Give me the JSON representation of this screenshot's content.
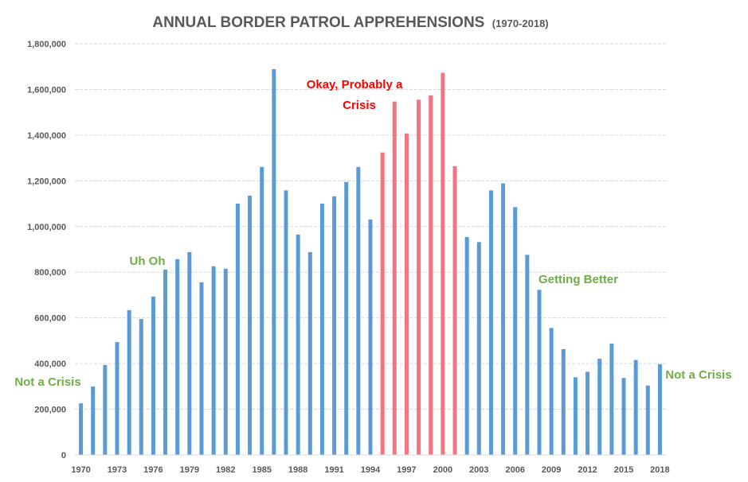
{
  "chart_data": {
    "type": "bar",
    "title": "ANNUAL BORDER PATROL APPREHENSIONS",
    "subtitle": "(1970-2018)",
    "xlabel": "",
    "ylabel": "",
    "ylim": [
      0,
      1800000
    ],
    "yticks": [
      0,
      200000,
      400000,
      600000,
      800000,
      1000000,
      1200000,
      1400000,
      1600000,
      1800000
    ],
    "ytick_labels": [
      "0",
      "200,000",
      "400,000",
      "600,000",
      "800,000",
      "1,000,000",
      "1,200,000",
      "1,400,000",
      "1,600,000",
      "1,800,000"
    ],
    "xtick_labels": [
      "1970",
      "1973",
      "1976",
      "1979",
      "1982",
      "1985",
      "1988",
      "1991",
      "1994",
      "1997",
      "2000",
      "2003",
      "2006",
      "2009",
      "2012",
      "2015",
      "2018"
    ],
    "grid": true,
    "legend": "none",
    "categories": [
      1970,
      1971,
      1972,
      1973,
      1974,
      1975,
      1976,
      1977,
      1978,
      1979,
      1980,
      1981,
      1982,
      1983,
      1984,
      1985,
      1986,
      1987,
      1988,
      1989,
      1990,
      1991,
      1992,
      1993,
      1994,
      1995,
      1996,
      1997,
      1998,
      1999,
      2000,
      2001,
      2002,
      2003,
      2004,
      2005,
      2006,
      2007,
      2008,
      2009,
      2010,
      2011,
      2012,
      2013,
      2014,
      2015,
      2016,
      2017,
      2018
    ],
    "values": [
      226000,
      300000,
      394000,
      494000,
      634000,
      595000,
      693000,
      811000,
      857000,
      888000,
      756000,
      826000,
      815000,
      1100000,
      1135000,
      1261000,
      1689000,
      1158000,
      965000,
      888000,
      1100000,
      1132000,
      1195000,
      1261000,
      1031000,
      1324000,
      1547000,
      1407000,
      1555000,
      1574000,
      1673000,
      1264000,
      954000,
      932000,
      1158000,
      1189000,
      1085000,
      876000,
      723000,
      556000,
      463000,
      340000,
      364000,
      421000,
      487000,
      337000,
      416000,
      304000,
      397000
    ],
    "highlight_range": [
      1995,
      2001
    ],
    "colors": {
      "default_bar": "#5b9bd5",
      "highlight_bar": "#f47484",
      "text": "#595959",
      "grid": "#d9d9d9",
      "annotation_green": "#70ad47",
      "annotation_red": "#ff0000"
    },
    "annotations": [
      {
        "text": "Not a Crisis",
        "near_year": 1970,
        "color": "green"
      },
      {
        "text": "Uh Oh",
        "near_year": 1977,
        "color": "green"
      },
      {
        "text": "Okay, Probably a",
        "near_year": 1995,
        "color": "red"
      },
      {
        "text": "Crisis",
        "near_year": 1995,
        "color": "red"
      },
      {
        "text": "Getting Better",
        "near_year": 2008,
        "color": "green"
      },
      {
        "text": "Not a Crisis",
        "near_year": 2018,
        "color": "green"
      }
    ]
  }
}
